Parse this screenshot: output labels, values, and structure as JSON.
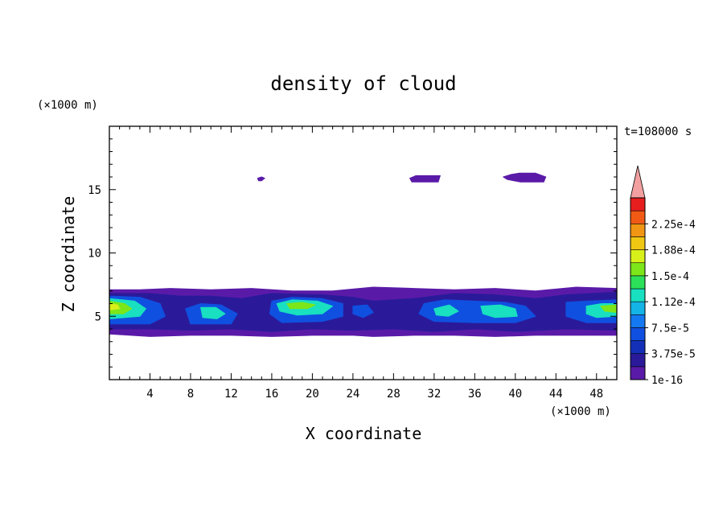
{
  "chart_data": {
    "type": "heatmap",
    "title": "density of cloud",
    "xlabel": "X coordinate",
    "ylabel": "Z coordinate",
    "x_unit": "(×1000 m)",
    "y_unit": "(×1000 m)",
    "time_label": "t=108000 s",
    "xlim": [
      0,
      50
    ],
    "ylim": [
      0,
      20
    ],
    "x_ticks": [
      4,
      8,
      12,
      16,
      20,
      24,
      28,
      32,
      36,
      40,
      44,
      48
    ],
    "y_ticks": [
      5,
      10,
      15
    ],
    "colorbar": {
      "levels": [
        1e-16,
        1.875e-05,
        3.75e-05,
        5.625e-05,
        7.5e-05,
        9.375e-05,
        0.0001125,
        0.00013125,
        0.00015,
        0.00016875,
        0.0001875,
        0.00020625,
        0.000225,
        0.00024375
      ],
      "labels": [
        "1e-16",
        "3.75e-5",
        "7.5e-5",
        "1.12e-4",
        "1.5e-4",
        "1.88e-4",
        "2.25e-4"
      ],
      "colors": [
        "#5a1aa8",
        "#2a1a9a",
        "#1530b8",
        "#1050e0",
        "#1478f0",
        "#14b4e6",
        "#18e0c0",
        "#2ce05a",
        "#7ce61a",
        "#d8f01a",
        "#f0c814",
        "#f09614",
        "#f05a14",
        "#e61e1e"
      ],
      "extend_color": "#f2a0a0"
    },
    "cloud_regions": [
      {
        "level": 0,
        "polygon": [
          [
            0,
            7.1
          ],
          [
            3,
            7.1
          ],
          [
            6,
            7.2
          ],
          [
            10,
            7.1
          ],
          [
            14,
            7.2
          ],
          [
            18,
            7.0
          ],
          [
            22,
            7.0
          ],
          [
            26,
            7.3
          ],
          [
            30,
            7.2
          ],
          [
            34,
            7.1
          ],
          [
            38,
            7.2
          ],
          [
            42,
            7.0
          ],
          [
            46,
            7.3
          ],
          [
            50,
            7.2
          ],
          [
            50,
            3.5
          ],
          [
            46,
            3.5
          ],
          [
            42,
            3.5
          ],
          [
            38,
            3.4
          ],
          [
            34,
            3.5
          ],
          [
            30,
            3.5
          ],
          [
            26,
            3.4
          ],
          [
            24,
            3.5
          ],
          [
            20,
            3.5
          ],
          [
            16,
            3.4
          ],
          [
            12,
            3.5
          ],
          [
            8,
            3.5
          ],
          [
            4,
            3.4
          ],
          [
            0,
            3.6
          ]
        ]
      },
      {
        "level": 0,
        "polygon": [
          [
            14.6,
            15.9
          ],
          [
            15.0,
            16.0
          ],
          [
            15.3,
            15.9
          ],
          [
            15.0,
            15.7
          ],
          [
            14.7,
            15.7
          ]
        ]
      },
      {
        "level": 0,
        "polygon": [
          [
            29.6,
            15.9
          ],
          [
            30.2,
            16.1
          ],
          [
            32.6,
            16.1
          ],
          [
            32.4,
            15.6
          ],
          [
            29.8,
            15.6
          ]
        ]
      },
      {
        "level": 0,
        "polygon": [
          [
            38.8,
            16.0
          ],
          [
            39.6,
            16.2
          ],
          [
            40.4,
            16.3
          ],
          [
            42.0,
            16.3
          ],
          [
            43.0,
            16.0
          ],
          [
            42.8,
            15.6
          ],
          [
            40.5,
            15.6
          ],
          [
            39.2,
            15.8
          ]
        ]
      },
      {
        "level": 1,
        "polygon": [
          [
            0,
            6.8
          ],
          [
            4,
            6.8
          ],
          [
            7,
            6.6
          ],
          [
            10,
            6.6
          ],
          [
            13,
            6.4
          ],
          [
            16,
            6.8
          ],
          [
            21,
            6.7
          ],
          [
            24,
            6.5
          ],
          [
            26,
            6.2
          ],
          [
            30,
            6.4
          ],
          [
            34,
            6.8
          ],
          [
            38,
            6.7
          ],
          [
            42,
            6.4
          ],
          [
            45,
            6.7
          ],
          [
            50,
            6.9
          ],
          [
            50,
            3.9
          ],
          [
            45,
            4.0
          ],
          [
            40,
            3.8
          ],
          [
            36,
            4.0
          ],
          [
            32,
            3.8
          ],
          [
            28,
            4.0
          ],
          [
            24,
            3.9
          ],
          [
            20,
            4.0
          ],
          [
            16,
            3.8
          ],
          [
            12,
            4.0
          ],
          [
            8,
            3.9
          ],
          [
            4,
            4.0
          ],
          [
            0,
            4.0
          ]
        ]
      },
      {
        "level": 3,
        "polygon": [
          [
            0,
            6.6
          ],
          [
            3,
            6.5
          ],
          [
            5,
            6.0
          ],
          [
            5.5,
            5.0
          ],
          [
            4,
            4.4
          ],
          [
            0,
            4.4
          ]
        ]
      },
      {
        "level": 3,
        "polygon": [
          [
            7.5,
            5.6
          ],
          [
            9,
            6.0
          ],
          [
            11,
            5.9
          ],
          [
            12.6,
            5.2
          ],
          [
            12,
            4.4
          ],
          [
            8,
            4.4
          ]
        ]
      },
      {
        "level": 3,
        "polygon": [
          [
            16,
            6.2
          ],
          [
            18,
            6.5
          ],
          [
            21,
            6.4
          ],
          [
            23,
            6.0
          ],
          [
            23,
            5.0
          ],
          [
            21,
            4.6
          ],
          [
            17,
            4.5
          ],
          [
            15.8,
            5.2
          ]
        ]
      },
      {
        "level": 3,
        "polygon": [
          [
            24,
            5.8
          ],
          [
            25.4,
            5.9
          ],
          [
            26,
            5.3
          ],
          [
            25,
            4.9
          ],
          [
            24,
            5.2
          ]
        ]
      },
      {
        "level": 3,
        "polygon": [
          [
            31,
            6.0
          ],
          [
            33,
            6.3
          ],
          [
            36,
            6.2
          ],
          [
            39,
            6.1
          ],
          [
            41,
            5.8
          ],
          [
            42,
            5.0
          ],
          [
            40,
            4.5
          ],
          [
            36,
            4.5
          ],
          [
            32,
            4.6
          ],
          [
            30.5,
            5.2
          ]
        ]
      },
      {
        "level": 3,
        "polygon": [
          [
            45,
            6.1
          ],
          [
            47,
            6.2
          ],
          [
            50,
            6.3
          ],
          [
            50,
            4.5
          ],
          [
            47,
            4.5
          ],
          [
            45,
            5.0
          ]
        ]
      },
      {
        "level": 6,
        "polygon": [
          [
            0,
            6.4
          ],
          [
            2.5,
            6.2
          ],
          [
            3.6,
            5.6
          ],
          [
            3.0,
            5.0
          ],
          [
            0,
            4.8
          ]
        ]
      },
      {
        "level": 6,
        "polygon": [
          [
            9,
            5.7
          ],
          [
            10.5,
            5.7
          ],
          [
            11.4,
            5.2
          ],
          [
            10.6,
            4.8
          ],
          [
            9.2,
            4.9
          ]
        ]
      },
      {
        "level": 6,
        "polygon": [
          [
            16.5,
            6.0
          ],
          [
            18,
            6.3
          ],
          [
            20.5,
            6.2
          ],
          [
            22,
            5.8
          ],
          [
            21,
            5.2
          ],
          [
            18.5,
            5.1
          ],
          [
            16.8,
            5.4
          ]
        ]
      },
      {
        "level": 6,
        "polygon": [
          [
            32,
            5.6
          ],
          [
            33.5,
            5.9
          ],
          [
            34.4,
            5.4
          ],
          [
            33.4,
            5.0
          ],
          [
            32.2,
            5.1
          ]
        ]
      },
      {
        "level": 6,
        "polygon": [
          [
            36.6,
            5.8
          ],
          [
            38.5,
            5.9
          ],
          [
            40,
            5.6
          ],
          [
            40.2,
            5.0
          ],
          [
            38,
            4.9
          ],
          [
            36.8,
            5.2
          ]
        ]
      },
      {
        "level": 6,
        "polygon": [
          [
            47,
            5.8
          ],
          [
            48.5,
            6.0
          ],
          [
            50,
            6.0
          ],
          [
            50,
            5.0
          ],
          [
            48,
            4.9
          ],
          [
            47,
            5.2
          ]
        ]
      },
      {
        "level": 8,
        "polygon": [
          [
            0,
            6.2
          ],
          [
            1.5,
            6.0
          ],
          [
            2.2,
            5.6
          ],
          [
            1.4,
            5.2
          ],
          [
            0,
            5.2
          ]
        ]
      },
      {
        "level": 8,
        "polygon": [
          [
            17.5,
            6.0
          ],
          [
            19,
            6.1
          ],
          [
            20.3,
            5.9
          ],
          [
            19.5,
            5.6
          ],
          [
            17.8,
            5.6
          ]
        ]
      },
      {
        "level": 8,
        "polygon": [
          [
            48.4,
            5.8
          ],
          [
            50,
            5.9
          ],
          [
            50,
            5.3
          ],
          [
            48.8,
            5.4
          ]
        ]
      },
      {
        "level": 9,
        "polygon": [
          [
            0,
            6.0
          ],
          [
            0.8,
            5.9
          ],
          [
            1.0,
            5.6
          ],
          [
            0,
            5.5
          ]
        ]
      }
    ]
  }
}
